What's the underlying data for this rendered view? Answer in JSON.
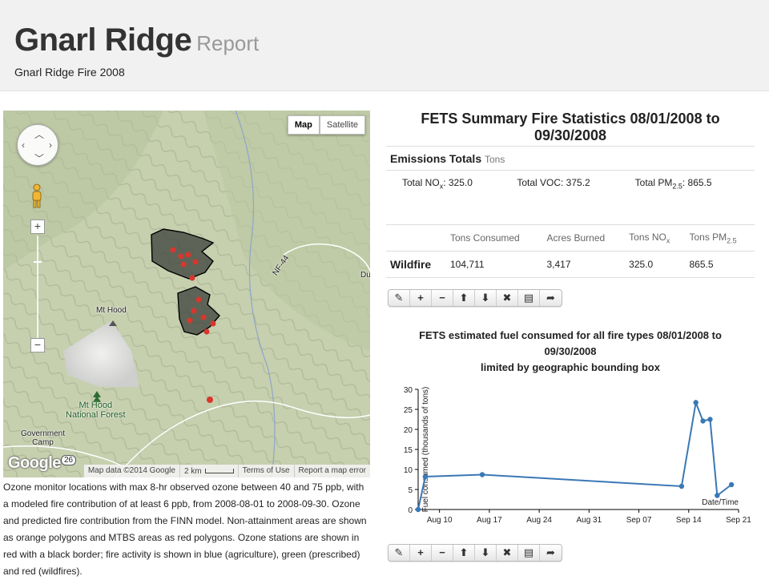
{
  "header": {
    "title": "Gnarl Ridge",
    "title_suffix": "Report",
    "subtitle": "Gnarl Ridge Fire 2008"
  },
  "map": {
    "type_buttons": [
      {
        "label": "Map",
        "active": true
      },
      {
        "label": "Satellite",
        "active": false
      }
    ],
    "zoom_in": "+",
    "zoom_out": "−",
    "places": {
      "mt_hood": "Mt Hood",
      "national_forest": "Mt Hood\nNational Forest",
      "government_camp": "Government\nCamp",
      "road_44": "NF-44",
      "route_26": "26",
      "du": "Du"
    },
    "logo": "Google",
    "footer": {
      "data": "Map data ©2014 Google",
      "scale": "2 km",
      "terms": "Terms of Use",
      "report": "Report a map error"
    }
  },
  "caption": "Ozone monitor locations with max 8-hr observed ozone between 40 and 75 ppb, with a modeled fire contribution of at least 6 ppb, from 2008-08-01 to 2008-09-30. Ozone and predicted fire contribution from the FINN model. Non-attainment areas are shown as orange polygons and MTBS areas as red polygons. Ozone stations are shown in red with a black border; fire activity is shown in blue (agriculture), green (prescribed) and red (wildfires).",
  "summary": {
    "title": "FETS Summary Fire Statistics 08/01/2008 to 09/30/2008",
    "emissions_label": "Emissions Totals",
    "emissions_unit": "Tons",
    "totals": {
      "nox": {
        "prefix": "Total NO",
        "sub": "x",
        "value": ": 325.0"
      },
      "voc": {
        "label": "Total VOC: 375.2"
      },
      "pm": {
        "prefix": "Total PM",
        "sub": "2.5",
        "value": ": 865.5"
      }
    },
    "table": {
      "headers": [
        "Tons Consumed",
        "Acres Burned",
        "Tons NO",
        "Tons PM"
      ],
      "header_subs": [
        "",
        "",
        "x",
        "2.5"
      ],
      "rows": [
        {
          "label": "Wildfire",
          "values": [
            "104,711",
            "3,417",
            "325.0",
            "865.5"
          ]
        }
      ]
    }
  },
  "toolbar_icons": [
    "pencil-icon",
    "plus-icon",
    "minus-icon",
    "arrow-up-icon",
    "arrow-down-icon",
    "close-icon",
    "document-icon",
    "share-icon"
  ],
  "toolbar_glyphs": [
    "✎",
    "+",
    "−",
    "⬆",
    "⬇",
    "✖",
    "▤",
    "➦"
  ],
  "fuel_chart": {
    "title_lines": [
      "FETS estimated fuel consumed for all fire types 08/01/2008 to",
      "09/30/2008",
      "limited by geographic bounding box"
    ]
  },
  "chart_data": {
    "type": "line",
    "title": "FETS estimated fuel consumed for all fire types 08/01/2008 to 09/30/2008 limited by geographic bounding box",
    "xlabel": "Date/Time",
    "ylabel": "Fuel consumed (thousands of tons)",
    "ylim": [
      0,
      30
    ],
    "yticks": [
      0,
      5,
      10,
      15,
      20,
      25,
      30
    ],
    "xticks": [
      "Aug 10",
      "Aug 17",
      "Aug 24",
      "Aug 31",
      "Sep 07",
      "Sep 14",
      "Sep 21"
    ],
    "x_tick_dates": [
      "2008-08-10",
      "2008-08-17",
      "2008-08-24",
      "2008-08-31",
      "2008-09-07",
      "2008-09-14",
      "2008-09-21"
    ],
    "xlim": [
      "2008-08-07",
      "2008-09-21"
    ],
    "grid": false,
    "color": "#3a78b5",
    "x": [
      "2008-08-07",
      "2008-08-08",
      "2008-08-16",
      "2008-09-13",
      "2008-09-15",
      "2008-09-16",
      "2008-09-17",
      "2008-09-18",
      "2008-09-20"
    ],
    "y": [
      0,
      8.2,
      8.7,
      5.8,
      26.7,
      22.1,
      22.5,
      3.5,
      6.2
    ]
  }
}
